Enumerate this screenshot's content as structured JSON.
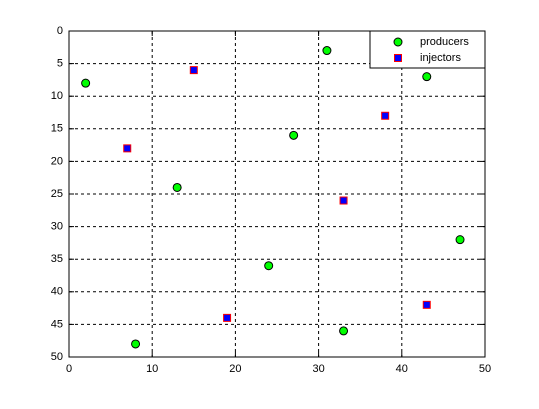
{
  "chart_data": {
    "type": "scatter",
    "xlim": [
      0,
      50
    ],
    "ylim": [
      0,
      50
    ],
    "y_reversed": true,
    "xticks": [
      0,
      10,
      20,
      30,
      40,
      50
    ],
    "yticks": [
      0,
      5,
      10,
      15,
      20,
      25,
      30,
      35,
      40,
      45,
      50
    ],
    "grid": true,
    "legend": "northeast",
    "series": [
      {
        "name": "producers",
        "color": "#00ff00",
        "marker": "circle",
        "x": [
          2,
          31,
          43,
          27,
          13,
          47,
          24,
          33,
          8
        ],
        "values": [
          8,
          3,
          7,
          16,
          24,
          32,
          36,
          46,
          48
        ]
      },
      {
        "name": "injectors",
        "color": "#0000ff",
        "edge_color": "#ff0000",
        "marker": "square",
        "x": [
          15,
          7,
          38,
          33,
          19,
          43
        ],
        "values": [
          6,
          18,
          13,
          26,
          44,
          42
        ]
      }
    ]
  }
}
